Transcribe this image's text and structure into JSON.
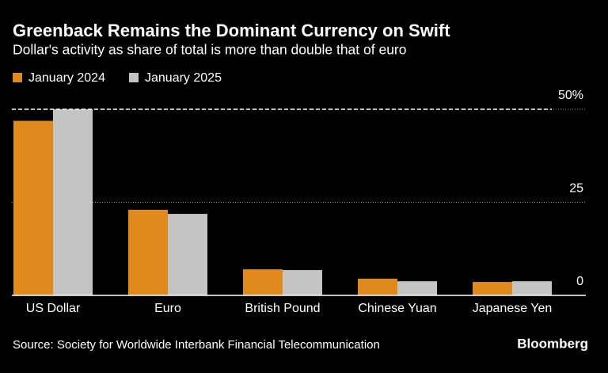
{
  "chart_data": {
    "type": "bar",
    "title": "Greenback Remains the Dominant Currency on Swift",
    "subtitle": "Dollar's activity as share of total is more than double that of euro",
    "categories": [
      "US Dollar",
      "Euro",
      "British Pound",
      "Chinese Yuan",
      "Japanese Yen"
    ],
    "series": [
      {
        "name": "January 2024",
        "color": "#e08a1e",
        "values": [
          46.9,
          23.0,
          7.0,
          4.5,
          3.6
        ]
      },
      {
        "name": "January 2025",
        "color": "#c4c4c4",
        "values": [
          50.0,
          21.9,
          6.8,
          3.8,
          3.8
        ]
      }
    ],
    "ylim": [
      0,
      50
    ],
    "yticks": [
      0,
      25,
      {
        "value": 50,
        "label": "50%"
      }
    ],
    "grid": true,
    "source": "Source: Society for Worldwide Interbank Financial Telecommunication",
    "logo": "Bloomberg"
  }
}
